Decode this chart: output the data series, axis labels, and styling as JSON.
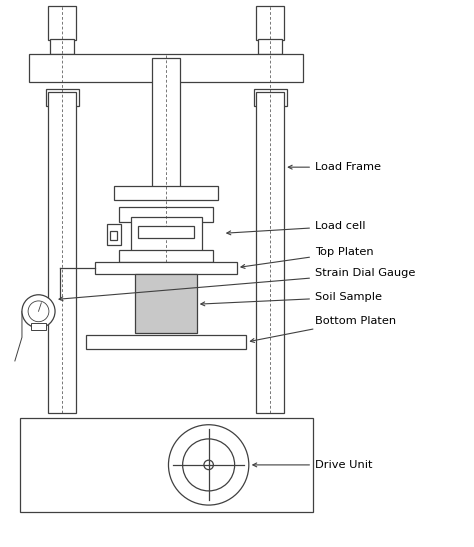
{
  "bg_color": "#ffffff",
  "line_color": "#404040",
  "gray_fill": "#c8c8c8",
  "labels": {
    "load_frame": "Load Frame",
    "load_cell": "Load cell",
    "top_platen": "Top Platen",
    "strain_gauge": "Strain Dial Gauge",
    "soil_sample": "Soil Sample",
    "bottom_platen": "Bottom Platen",
    "drive_unit": "Drive Unit"
  },
  "figsize": [
    4.74,
    5.47
  ],
  "dpi": 100
}
